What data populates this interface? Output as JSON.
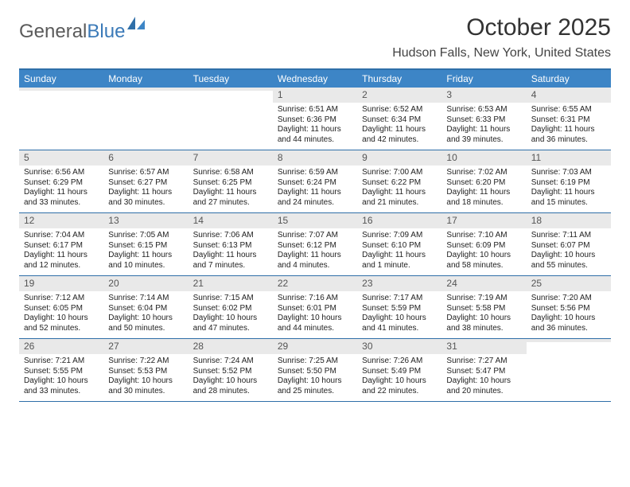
{
  "logo": {
    "text1": "General",
    "text2": "Blue"
  },
  "title": "October 2025",
  "location": "Hudson Falls, New York, United States",
  "colors": {
    "header_bar": "#3d85c6",
    "border": "#2f6fa8",
    "daynum_bg": "#e9e9e9",
    "logo_gray": "#5a5a5a",
    "logo_blue": "#3b7ab8"
  },
  "daysOfWeek": [
    "Sunday",
    "Monday",
    "Tuesday",
    "Wednesday",
    "Thursday",
    "Friday",
    "Saturday"
  ],
  "weeks": [
    [
      {
        "n": "",
        "sr": "",
        "ss": "",
        "dl": ""
      },
      {
        "n": "",
        "sr": "",
        "ss": "",
        "dl": ""
      },
      {
        "n": "",
        "sr": "",
        "ss": "",
        "dl": ""
      },
      {
        "n": "1",
        "sr": "Sunrise: 6:51 AM",
        "ss": "Sunset: 6:36 PM",
        "dl": "Daylight: 11 hours and 44 minutes."
      },
      {
        "n": "2",
        "sr": "Sunrise: 6:52 AM",
        "ss": "Sunset: 6:34 PM",
        "dl": "Daylight: 11 hours and 42 minutes."
      },
      {
        "n": "3",
        "sr": "Sunrise: 6:53 AM",
        "ss": "Sunset: 6:33 PM",
        "dl": "Daylight: 11 hours and 39 minutes."
      },
      {
        "n": "4",
        "sr": "Sunrise: 6:55 AM",
        "ss": "Sunset: 6:31 PM",
        "dl": "Daylight: 11 hours and 36 minutes."
      }
    ],
    [
      {
        "n": "5",
        "sr": "Sunrise: 6:56 AM",
        "ss": "Sunset: 6:29 PM",
        "dl": "Daylight: 11 hours and 33 minutes."
      },
      {
        "n": "6",
        "sr": "Sunrise: 6:57 AM",
        "ss": "Sunset: 6:27 PM",
        "dl": "Daylight: 11 hours and 30 minutes."
      },
      {
        "n": "7",
        "sr": "Sunrise: 6:58 AM",
        "ss": "Sunset: 6:25 PM",
        "dl": "Daylight: 11 hours and 27 minutes."
      },
      {
        "n": "8",
        "sr": "Sunrise: 6:59 AM",
        "ss": "Sunset: 6:24 PM",
        "dl": "Daylight: 11 hours and 24 minutes."
      },
      {
        "n": "9",
        "sr": "Sunrise: 7:00 AM",
        "ss": "Sunset: 6:22 PM",
        "dl": "Daylight: 11 hours and 21 minutes."
      },
      {
        "n": "10",
        "sr": "Sunrise: 7:02 AM",
        "ss": "Sunset: 6:20 PM",
        "dl": "Daylight: 11 hours and 18 minutes."
      },
      {
        "n": "11",
        "sr": "Sunrise: 7:03 AM",
        "ss": "Sunset: 6:19 PM",
        "dl": "Daylight: 11 hours and 15 minutes."
      }
    ],
    [
      {
        "n": "12",
        "sr": "Sunrise: 7:04 AM",
        "ss": "Sunset: 6:17 PM",
        "dl": "Daylight: 11 hours and 12 minutes."
      },
      {
        "n": "13",
        "sr": "Sunrise: 7:05 AM",
        "ss": "Sunset: 6:15 PM",
        "dl": "Daylight: 11 hours and 10 minutes."
      },
      {
        "n": "14",
        "sr": "Sunrise: 7:06 AM",
        "ss": "Sunset: 6:13 PM",
        "dl": "Daylight: 11 hours and 7 minutes."
      },
      {
        "n": "15",
        "sr": "Sunrise: 7:07 AM",
        "ss": "Sunset: 6:12 PM",
        "dl": "Daylight: 11 hours and 4 minutes."
      },
      {
        "n": "16",
        "sr": "Sunrise: 7:09 AM",
        "ss": "Sunset: 6:10 PM",
        "dl": "Daylight: 11 hours and 1 minute."
      },
      {
        "n": "17",
        "sr": "Sunrise: 7:10 AM",
        "ss": "Sunset: 6:09 PM",
        "dl": "Daylight: 10 hours and 58 minutes."
      },
      {
        "n": "18",
        "sr": "Sunrise: 7:11 AM",
        "ss": "Sunset: 6:07 PM",
        "dl": "Daylight: 10 hours and 55 minutes."
      }
    ],
    [
      {
        "n": "19",
        "sr": "Sunrise: 7:12 AM",
        "ss": "Sunset: 6:05 PM",
        "dl": "Daylight: 10 hours and 52 minutes."
      },
      {
        "n": "20",
        "sr": "Sunrise: 7:14 AM",
        "ss": "Sunset: 6:04 PM",
        "dl": "Daylight: 10 hours and 50 minutes."
      },
      {
        "n": "21",
        "sr": "Sunrise: 7:15 AM",
        "ss": "Sunset: 6:02 PM",
        "dl": "Daylight: 10 hours and 47 minutes."
      },
      {
        "n": "22",
        "sr": "Sunrise: 7:16 AM",
        "ss": "Sunset: 6:01 PM",
        "dl": "Daylight: 10 hours and 44 minutes."
      },
      {
        "n": "23",
        "sr": "Sunrise: 7:17 AM",
        "ss": "Sunset: 5:59 PM",
        "dl": "Daylight: 10 hours and 41 minutes."
      },
      {
        "n": "24",
        "sr": "Sunrise: 7:19 AM",
        "ss": "Sunset: 5:58 PM",
        "dl": "Daylight: 10 hours and 38 minutes."
      },
      {
        "n": "25",
        "sr": "Sunrise: 7:20 AM",
        "ss": "Sunset: 5:56 PM",
        "dl": "Daylight: 10 hours and 36 minutes."
      }
    ],
    [
      {
        "n": "26",
        "sr": "Sunrise: 7:21 AM",
        "ss": "Sunset: 5:55 PM",
        "dl": "Daylight: 10 hours and 33 minutes."
      },
      {
        "n": "27",
        "sr": "Sunrise: 7:22 AM",
        "ss": "Sunset: 5:53 PM",
        "dl": "Daylight: 10 hours and 30 minutes."
      },
      {
        "n": "28",
        "sr": "Sunrise: 7:24 AM",
        "ss": "Sunset: 5:52 PM",
        "dl": "Daylight: 10 hours and 28 minutes."
      },
      {
        "n": "29",
        "sr": "Sunrise: 7:25 AM",
        "ss": "Sunset: 5:50 PM",
        "dl": "Daylight: 10 hours and 25 minutes."
      },
      {
        "n": "30",
        "sr": "Sunrise: 7:26 AM",
        "ss": "Sunset: 5:49 PM",
        "dl": "Daylight: 10 hours and 22 minutes."
      },
      {
        "n": "31",
        "sr": "Sunrise: 7:27 AM",
        "ss": "Sunset: 5:47 PM",
        "dl": "Daylight: 10 hours and 20 minutes."
      },
      {
        "n": "",
        "sr": "",
        "ss": "",
        "dl": ""
      }
    ]
  ]
}
